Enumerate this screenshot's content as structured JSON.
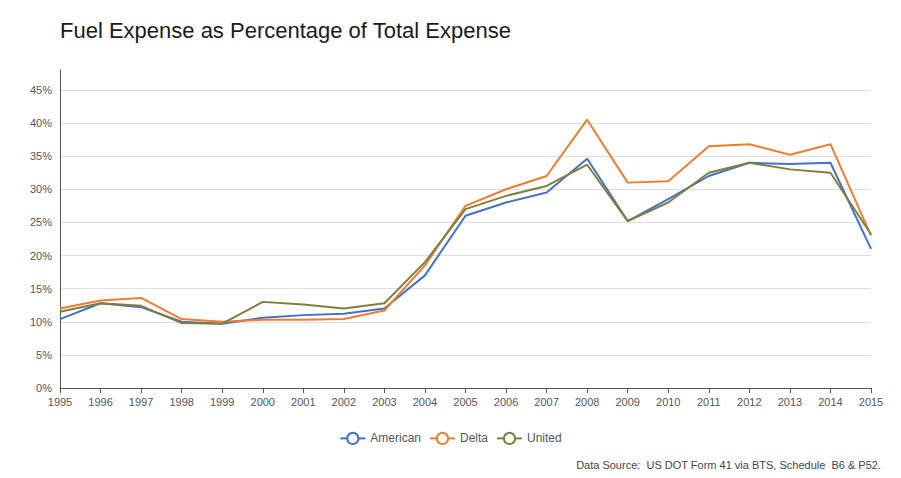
{
  "chart_data": {
    "type": "line",
    "title": "Fuel Expense as Percentage of Total Expense",
    "x": [
      1995,
      1996,
      1997,
      1998,
      1999,
      2000,
      2001,
      2002,
      2003,
      2004,
      2005,
      2006,
      2007,
      2008,
      2009,
      2010,
      2011,
      2012,
      2013,
      2014,
      2015
    ],
    "series": [
      {
        "name": "American",
        "color": "#4472C4",
        "values": [
          0.104,
          0.128,
          0.122,
          0.1,
          0.097,
          0.106,
          0.11,
          0.112,
          0.12,
          0.17,
          0.26,
          0.28,
          0.295,
          0.346,
          0.252,
          0.285,
          0.32,
          0.34,
          0.338,
          0.34,
          0.21
        ]
      },
      {
        "name": "Delta",
        "color": "#ED7D31",
        "values": [
          0.12,
          0.132,
          0.136,
          0.104,
          0.1,
          0.103,
          0.103,
          0.104,
          0.117,
          0.185,
          0.275,
          0.3,
          0.32,
          0.405,
          0.31,
          0.312,
          0.365,
          0.368,
          0.352,
          0.368,
          0.23
        ]
      },
      {
        "name": "United",
        "color": "#7F7F3F",
        "values": [
          0.115,
          0.128,
          0.124,
          0.098,
          0.097,
          0.13,
          0.126,
          0.12,
          0.128,
          0.19,
          0.27,
          0.29,
          0.305,
          0.337,
          0.252,
          0.28,
          0.325,
          0.34,
          0.33,
          0.325,
          0.232
        ]
      }
    ],
    "xlim": [
      1995,
      2015
    ],
    "xticks": [
      1995,
      1996,
      1997,
      1998,
      1999,
      2000,
      2001,
      2002,
      2003,
      2004,
      2005,
      2006,
      2007,
      2008,
      2009,
      2010,
      2011,
      2012,
      2013,
      2014,
      2015
    ],
    "ylim": [
      0,
      0.48
    ],
    "yticks": [
      {
        "value": 0,
        "label": "0%"
      },
      {
        "value": 0.05,
        "label": "5%"
      },
      {
        "value": 0.1,
        "label": "10%"
      },
      {
        "value": 0.15,
        "label": "15%"
      },
      {
        "value": 0.2,
        "label": "20%"
      },
      {
        "value": 0.25,
        "label": "25%"
      },
      {
        "value": 0.3,
        "label": "30%"
      },
      {
        "value": 0.35,
        "label": "35%"
      },
      {
        "value": 0.4,
        "label": "40%"
      },
      {
        "value": 0.45,
        "label": "45%"
      }
    ],
    "grid": true,
    "legend": "bottom",
    "annotations": [
      "Data Source:  US DOT Form 41 via BTS, Schedule  B6 & P52."
    ]
  }
}
